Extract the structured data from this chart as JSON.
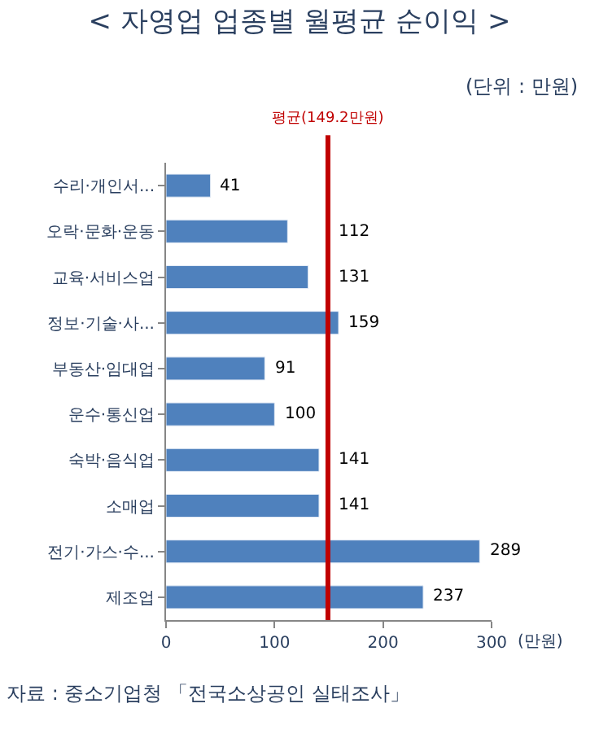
{
  "chart_data": {
    "type": "bar",
    "orientation": "horizontal",
    "title": "< 자영업 업종별 월평균 순이익 >",
    "subtitle": "(단위 : 만원)",
    "xlabel": "(만원)",
    "categories": [
      "수리·개인서...",
      "오락·문화·운동",
      "교육·서비스업",
      "정보·기술·사...",
      "부동산·임대업",
      "운수·통신업",
      "숙박·음식업",
      "소매업",
      "전기·가스·수...",
      "제조업"
    ],
    "values": [
      41,
      112,
      131,
      159,
      91,
      100,
      141,
      141,
      289,
      237
    ],
    "color": "#4f81bd",
    "data_labels": true,
    "xlim": [
      0,
      300
    ],
    "xticks": [
      0,
      100,
      200,
      300
    ],
    "ref_lines": [
      {
        "axis": "x",
        "value": 149.2,
        "label": "평균(149.2만원)",
        "color": "#c00000"
      }
    ],
    "annotations": [
      "자료 : 중소기업청 「전국소상공인 실태조사」"
    ]
  }
}
